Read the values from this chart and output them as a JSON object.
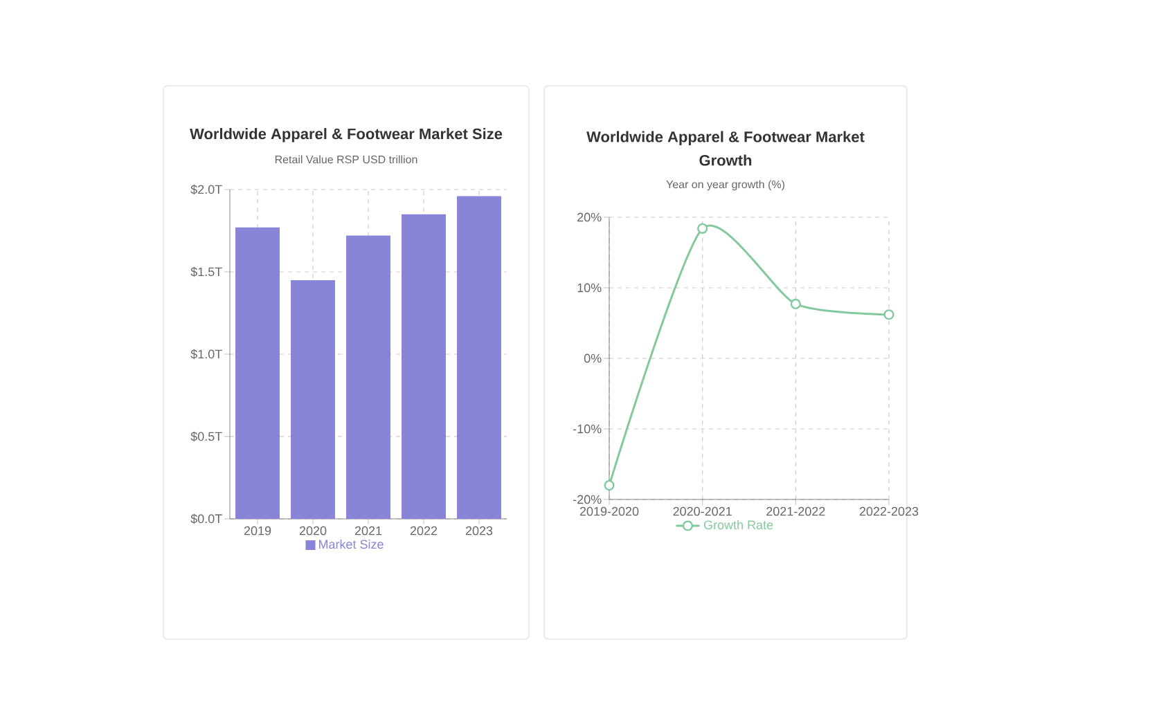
{
  "chart_data": [
    {
      "type": "bar",
      "title": "Worldwide Apparel & Footwear Market Size",
      "subtitle": "Retail Value RSP USD trillion",
      "categories": [
        "2019",
        "2020",
        "2021",
        "2022",
        "2023"
      ],
      "series": [
        {
          "name": "Market Size",
          "color": "#8884d8",
          "values": [
            1.77,
            1.45,
            1.72,
            1.85,
            1.96
          ]
        }
      ],
      "ylim": [
        0,
        2
      ],
      "yticks": [
        {
          "value": 0,
          "label": "$0.0T"
        },
        {
          "value": 0.5,
          "label": "$0.5T"
        },
        {
          "value": 1,
          "label": "$1.0T"
        },
        {
          "value": 1.5,
          "label": "$1.5T"
        },
        {
          "value": 2,
          "label": "$2.0T"
        }
      ],
      "grid": true,
      "legend": "bottom"
    },
    {
      "type": "line",
      "title": "Worldwide Apparel & Footwear Market Growth",
      "subtitle": "Year on year growth (%)",
      "categories": [
        "2019-2020",
        "2020-2021",
        "2021-2022",
        "2022-2023"
      ],
      "series": [
        {
          "name": "Growth Rate",
          "color": "#82ca9d",
          "values": [
            -18,
            18.4,
            7.7,
            6.2
          ]
        }
      ],
      "ylim": [
        -20,
        20
      ],
      "yticks": [
        {
          "value": -20,
          "label": "-20%"
        },
        {
          "value": -10,
          "label": "-10%"
        },
        {
          "value": 0,
          "label": "0%"
        },
        {
          "value": 10,
          "label": "10%"
        },
        {
          "value": 20,
          "label": "20%"
        }
      ],
      "grid": true,
      "legend": "bottom",
      "marker": "circle",
      "line_style": "solid"
    }
  ]
}
